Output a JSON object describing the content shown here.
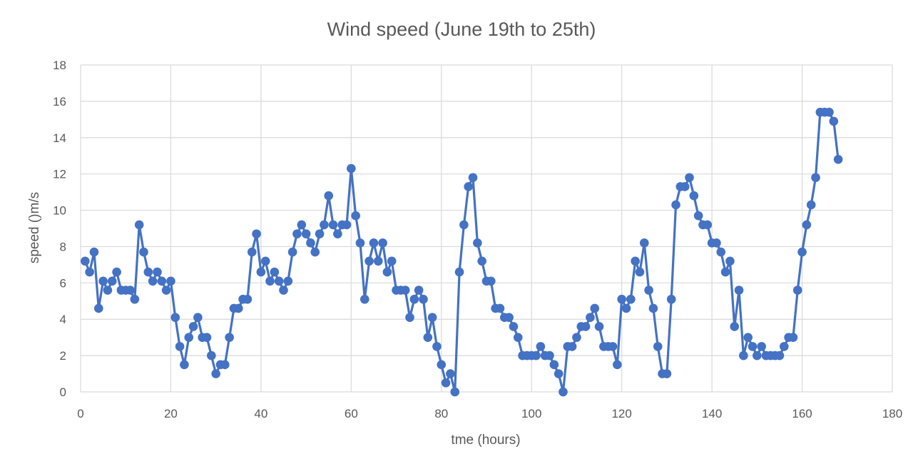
{
  "chart_data": {
    "type": "line",
    "title": "Wind speed (June 19th to 25th)",
    "xlabel": "tme (hours)",
    "ylabel": "speed ()m/s",
    "xlim": [
      0,
      180
    ],
    "ylim": [
      0,
      18
    ],
    "x_ticks": [
      0,
      20,
      40,
      60,
      80,
      100,
      120,
      140,
      160,
      180
    ],
    "y_ticks": [
      0,
      2,
      4,
      6,
      8,
      10,
      12,
      14,
      16,
      18
    ],
    "grid": true,
    "markers": true,
    "series_color": "#4472C4",
    "grid_color": "#d9d9d9",
    "series": [
      {
        "x": [
          1,
          2,
          3,
          4,
          5,
          6,
          7,
          8,
          9,
          10,
          11,
          12,
          13,
          14,
          15,
          16,
          17,
          18,
          19,
          20,
          21,
          22,
          23,
          24,
          25,
          26,
          27,
          28,
          29,
          30,
          31,
          32,
          33,
          34,
          35,
          36,
          37,
          38,
          39,
          40,
          41,
          42,
          43,
          44,
          45,
          46,
          47,
          48,
          49,
          50,
          51,
          52,
          53,
          54,
          55,
          56,
          57,
          58,
          59,
          60,
          61,
          62,
          63,
          64,
          65,
          66,
          67,
          68,
          69,
          70,
          71,
          72,
          73,
          74,
          75,
          76,
          77,
          78,
          79,
          80,
          81,
          82,
          83,
          84,
          85,
          86,
          87,
          88,
          89,
          90,
          91,
          92,
          93,
          94,
          95,
          96,
          97,
          98,
          99,
          100,
          101,
          102,
          103,
          104,
          105,
          106,
          107,
          108,
          109,
          110,
          111,
          112,
          113,
          114,
          115,
          116,
          117,
          118,
          119,
          120,
          121,
          122,
          123,
          124,
          125,
          126,
          127,
          128,
          129,
          130,
          131,
          132,
          133,
          134,
          135,
          136,
          137,
          138,
          139,
          140,
          141,
          142,
          143,
          144,
          145,
          146,
          147,
          148,
          149,
          150,
          151,
          152,
          153,
          154,
          155,
          156,
          157,
          158,
          159,
          160,
          161,
          162,
          163,
          164,
          165,
          166,
          167,
          168
        ],
        "values": [
          7.2,
          6.6,
          7.7,
          4.6,
          6.1,
          5.6,
          6.1,
          6.6,
          5.6,
          5.6,
          5.6,
          5.1,
          9.2,
          7.7,
          6.6,
          6.1,
          6.6,
          6.1,
          5.6,
          6.1,
          4.1,
          2.5,
          1.5,
          3.0,
          3.6,
          4.1,
          3.0,
          3.0,
          2.0,
          1.0,
          1.5,
          1.5,
          3.0,
          4.6,
          4.6,
          5.1,
          5.1,
          7.7,
          8.7,
          6.6,
          7.2,
          6.1,
          6.6,
          6.1,
          5.6,
          6.1,
          7.7,
          8.7,
          9.2,
          8.7,
          8.2,
          7.7,
          8.7,
          9.2,
          10.8,
          9.2,
          8.7,
          9.2,
          9.2,
          12.3,
          9.7,
          8.2,
          5.1,
          7.2,
          8.2,
          7.2,
          8.2,
          6.6,
          7.2,
          5.6,
          5.6,
          5.6,
          4.1,
          5.1,
          5.6,
          5.1,
          3.0,
          4.1,
          2.5,
          1.5,
          0.5,
          1.0,
          0.0,
          6.6,
          9.2,
          11.3,
          11.8,
          8.2,
          7.2,
          6.1,
          6.1,
          4.6,
          4.6,
          4.1,
          4.1,
          3.6,
          3.0,
          2.0,
          2.0,
          2.0,
          2.0,
          2.5,
          2.0,
          2.0,
          1.5,
          1.0,
          0.0,
          2.5,
          2.5,
          3.0,
          3.6,
          3.6,
          4.1,
          4.6,
          3.6,
          2.5,
          2.5,
          2.5,
          1.5,
          5.1,
          4.6,
          5.1,
          7.2,
          6.6,
          8.2,
          5.6,
          4.6,
          2.5,
          1.0,
          1.0,
          5.1,
          10.3,
          11.3,
          11.3,
          11.8,
          10.8,
          9.7,
          9.2,
          9.2,
          8.2,
          8.2,
          7.7,
          6.6,
          7.2,
          3.6,
          5.6,
          2.0,
          3.0,
          2.5,
          2.0,
          2.5,
          2.0,
          2.0,
          2.0,
          2.0,
          2.5,
          3.0,
          3.0,
          5.6,
          7.7,
          9.2,
          10.3,
          11.8,
          15.4,
          15.4,
          15.4,
          14.9,
          12.8
        ]
      }
    ]
  }
}
